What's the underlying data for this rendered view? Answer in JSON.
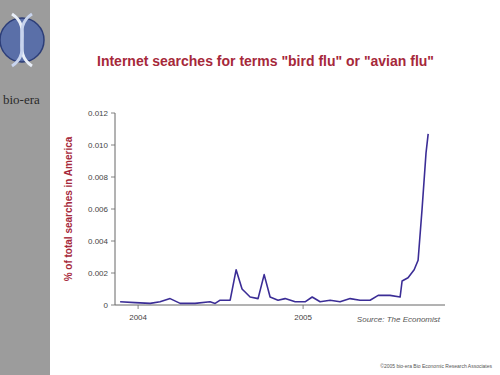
{
  "chart_data": {
    "type": "line",
    "title": "Internet searches for terms \"bird flu\" or \"avian flu\"",
    "y_label": "% of total searches in America",
    "source": "Source: The Economist",
    "logo_text": "bio-era",
    "copyright": "©2005 bio-era Bio Economic Research Associates",
    "x": [
      2003.891,
      2003.982,
      2004.073,
      2004.133,
      2004.194,
      2004.255,
      2004.345,
      2004.436,
      2004.467,
      2004.497,
      2004.558,
      2004.594,
      2004.63,
      2004.679,
      2004.727,
      2004.764,
      2004.8,
      2004.848,
      2004.891,
      2004.952,
      2005.012,
      2005.055,
      2005.103,
      2005.164,
      2005.224,
      2005.285,
      2005.345,
      2005.406,
      2005.455,
      2005.527,
      2005.588,
      2005.6,
      2005.636,
      2005.673,
      2005.697,
      2005.721,
      2005.745,
      2005.758
    ],
    "values": [
      0.0002,
      0.00015,
      0.0001,
      0.0002,
      0.0004,
      0.0001,
      0.0001,
      0.0002,
      0.0001,
      0.0003,
      0.0003,
      0.0022,
      0.001,
      0.0005,
      0.0004,
      0.0019,
      0.0005,
      0.0003,
      0.0004,
      0.0002,
      0.0002,
      0.0005,
      0.0002,
      0.0003,
      0.0002,
      0.0004,
      0.0003,
      0.0003,
      0.0006,
      0.0006,
      0.0005,
      0.0015,
      0.0017,
      0.0022,
      0.0028,
      0.006,
      0.0095,
      0.0107
    ],
    "color": "#3b2d96",
    "xlim": [
      2003.86,
      2005.86
    ],
    "xticks": [
      2004,
      2005
    ],
    "ylim": [
      0,
      0.012
    ],
    "yticks": [
      0,
      0.002,
      0.004,
      0.006,
      0.008,
      {
        "value": 0.01,
        "label": "0.010"
      },
      0.012
    ],
    "grid": false
  }
}
